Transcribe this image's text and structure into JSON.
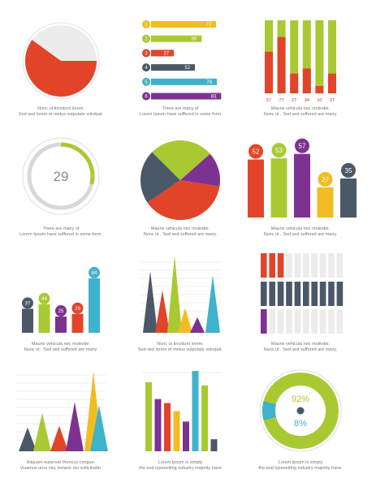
{
  "colors": {
    "red": "#e2442a",
    "yellow": "#f2bd22",
    "green": "#a9c933",
    "slate": "#4b5868",
    "teal": "#3fb2cc",
    "purple": "#7d3292",
    "track": "#ececec"
  },
  "captions": [
    [
      "Nunc ut tincidunt lorem.",
      "Sed sed lorem et metus vulputate volutpat."
    ],
    [
      "There are many  of",
      "Lorem Ipsum  have suffered  in some form"
    ],
    [
      "Mauris vehicula nec molestie.",
      "Nunc ut . Sed sed  suffered  are many."
    ],
    [
      "There are many  of",
      "Lorem Ipsum  have suffered  in some form."
    ],
    [
      "Mauris vehicula nec molestie.",
      "Nunc ut . Sed sed  suffered  are many."
    ],
    [
      "Mauris vehicula nec molestie.",
      "Nunc ut . Sed sed  suffered  are many."
    ],
    [
      "Mauris vehicula nec molestie.",
      "Nunc ut . Sed sed  suffered  are many."
    ],
    [
      "Nunc ut tincidunt lorem.",
      "Sed sed lorem et metus vulputate volutpat."
    ],
    [
      "Mauris vehicula nec molestie.",
      "Nunc ut . Sed sed  suffered  are many."
    ],
    [
      "Aliquam euismod rhoncus congue.",
      "Vivamus urna nisi, tempor dui sollicitudin."
    ],
    [
      "Lorem Ipsum is simply",
      "the  and typesetting industry majority have"
    ],
    [
      "Lorem Ipsum is simply",
      "the  and typesetting industry majority have."
    ]
  ],
  "chart_data": [
    {
      "type": "pie",
      "slices": [
        {
          "value": 60,
          "color": "red"
        },
        {
          "value": 40,
          "color": "track"
        }
      ]
    },
    {
      "type": "bar",
      "orientation": "horizontal",
      "categories": [
        "1",
        "2",
        "3",
        "4",
        "5",
        "6"
      ],
      "values": [
        77,
        60,
        27,
        52,
        78,
        83
      ],
      "colors": [
        "yellow",
        "green",
        "red",
        "slate",
        "teal",
        "purple"
      ],
      "ylim": [
        0,
        100
      ]
    },
    {
      "type": "bar",
      "stacked": true,
      "values": [
        57,
        77,
        27,
        34,
        10,
        27
      ],
      "ylim": [
        0,
        100
      ],
      "bottom_color": "red",
      "top_color": "green"
    },
    {
      "type": "pie",
      "variant": "progress-ring",
      "value": 29,
      "center_label": "29",
      "max": 100,
      "color": "green"
    },
    {
      "type": "pie",
      "slices": [
        {
          "value": 38,
          "color": "red"
        },
        {
          "value": 22,
          "color": "slate"
        },
        {
          "value": 26,
          "color": "green"
        },
        {
          "value": 14,
          "color": "purple"
        }
      ]
    },
    {
      "type": "bar",
      "values": [
        52,
        53,
        57,
        27,
        35
      ],
      "labels": [
        "52",
        "53",
        "57",
        "27",
        "35"
      ],
      "colors": [
        "red",
        "green",
        "purple",
        "yellow",
        "slate"
      ],
      "ylim": [
        0,
        80
      ]
    },
    {
      "type": "bar",
      "values": [
        37,
        44,
        25,
        29,
        84
      ],
      "labels": [
        "37",
        "44",
        "25",
        "29",
        "84"
      ],
      "colors": [
        "slate",
        "green",
        "purple",
        "red",
        "teal"
      ],
      "ylim": [
        0,
        100
      ]
    },
    {
      "type": "area",
      "variant": "triangles",
      "values": [
        80,
        55,
        100,
        32,
        20,
        75
      ],
      "colors": [
        "slate",
        "red",
        "green",
        "yellow",
        "purple",
        "teal"
      ],
      "ylim": [
        0,
        100
      ]
    },
    {
      "type": "bar",
      "variant": "segmented-rows",
      "segments": 10,
      "rows": [
        {
          "filled": 3,
          "color": "red"
        },
        {
          "filled": 10,
          "color": "slate"
        },
        {
          "filled": 1,
          "color": "purple"
        }
      ]
    },
    {
      "type": "area",
      "variant": "triangles",
      "values": [
        30,
        48,
        32,
        62,
        100,
        58
      ],
      "colors": [
        "slate",
        "green",
        "red",
        "purple",
        "yellow",
        "teal"
      ],
      "ylim": [
        0,
        100
      ]
    },
    {
      "type": "bar",
      "values": [
        86,
        65,
        60,
        50,
        37,
        100,
        82,
        15
      ],
      "colors": [
        "green",
        "purple",
        "red",
        "yellow",
        "purple",
        "teal",
        "green",
        "slate"
      ],
      "ylim": [
        0,
        100
      ]
    },
    {
      "type": "pie",
      "variant": "donut",
      "slices": [
        {
          "value": 92,
          "label": "92%",
          "color": "green"
        },
        {
          "value": 8,
          "label": "8%",
          "color": "teal"
        }
      ]
    }
  ]
}
